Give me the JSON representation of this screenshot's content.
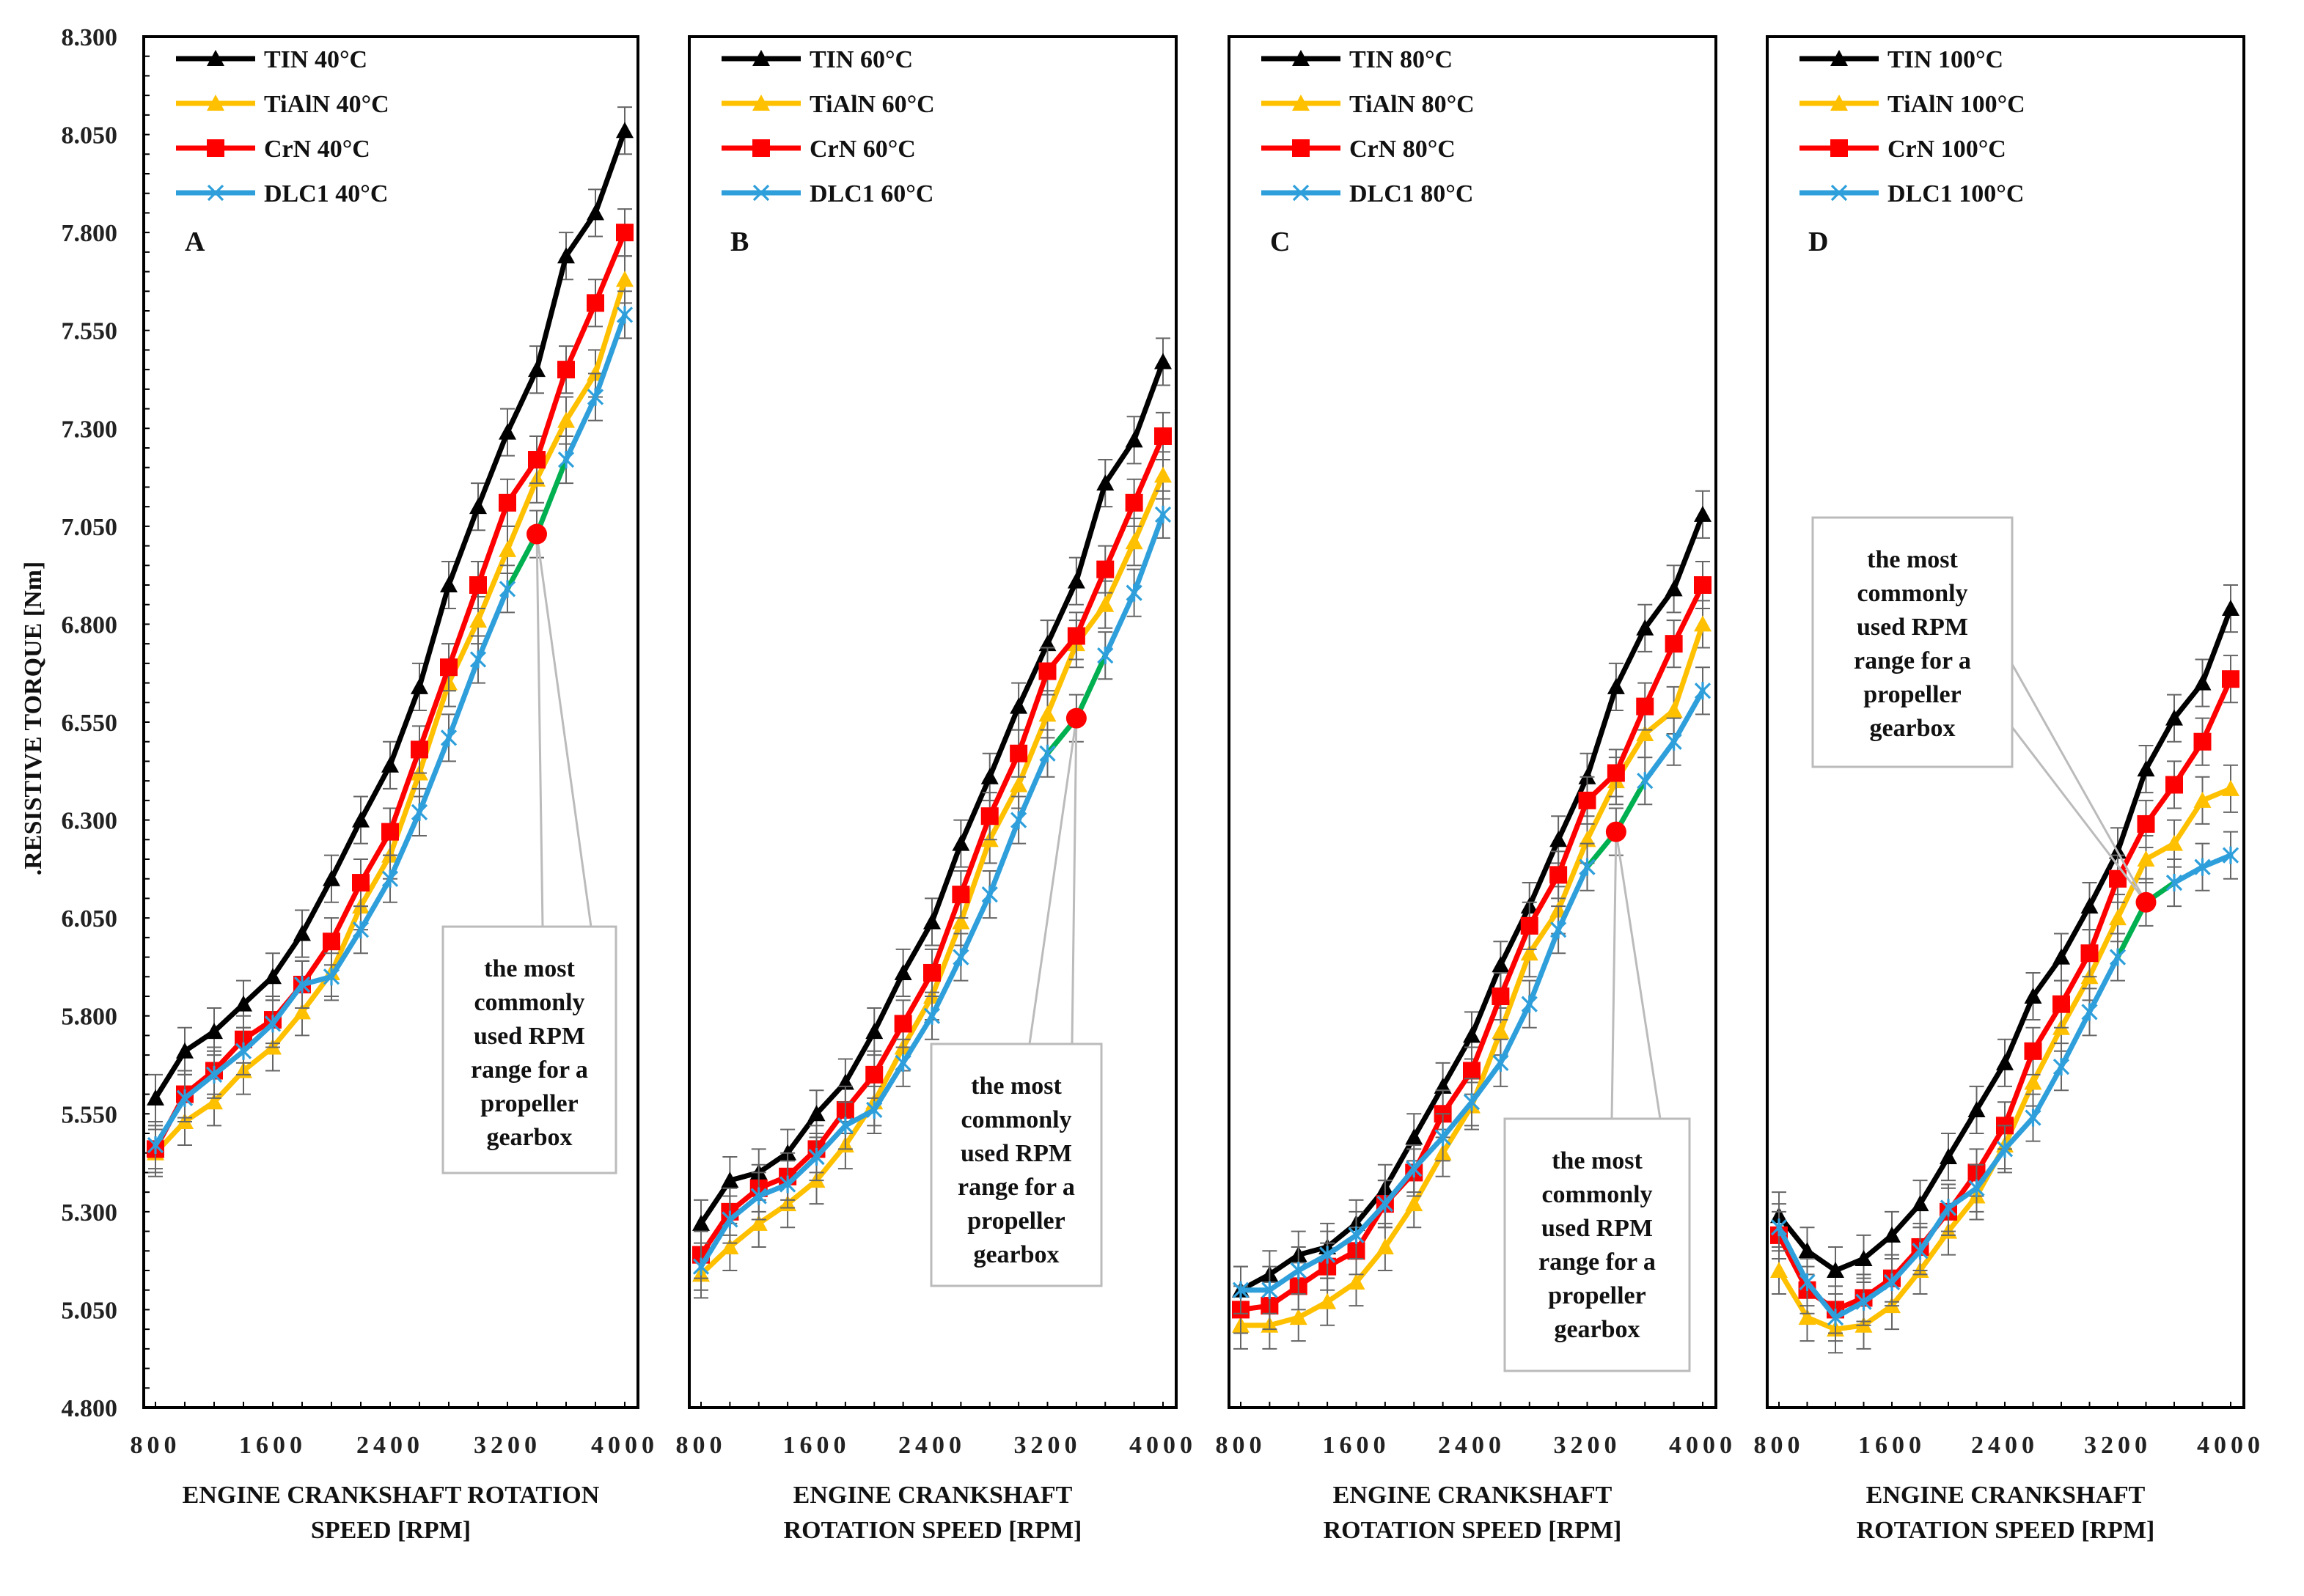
{
  "shared": {
    "ylabel": ".RESISTIVE TORQUE [Nm]",
    "ylim": [
      4.8,
      8.3
    ],
    "yticks": [
      "4.800",
      "5.050",
      "5.300",
      "5.550",
      "5.800",
      "6.050",
      "6.300",
      "6.550",
      "6.800",
      "7.050",
      "7.300",
      "7.550",
      "7.800",
      "8.050",
      "8.300"
    ],
    "xlim": [
      800,
      4000
    ],
    "xticks": [
      "800",
      "1600",
      "2400",
      "3200",
      "4000"
    ],
    "x": [
      800,
      1000,
      1200,
      1400,
      1600,
      1800,
      2000,
      2200,
      2400,
      2600,
      2800,
      3000,
      3200,
      3400,
      3600,
      3800,
      4000
    ],
    "error_bar": 0.06,
    "highlight_range": [
      3200,
      3600
    ],
    "highlight_color": "#00B050",
    "circle_x": 3400,
    "callout_text": [
      "the most",
      "commonly",
      "used RPM",
      "range for a",
      "propeller",
      "gearbox"
    ]
  },
  "chart_data": [
    {
      "type": "line",
      "panel_label": "A",
      "xlabel": [
        "ENGINE CRANKSHAFT ROTATION",
        "SPEED [RPM]"
      ],
      "series": [
        {
          "name": "TIN 40°C",
          "color": "#000000",
          "marker": "triangle",
          "values": [
            5.59,
            5.71,
            5.76,
            5.83,
            5.9,
            6.01,
            6.15,
            6.3,
            6.44,
            6.64,
            6.9,
            7.1,
            7.29,
            7.45,
            7.74,
            7.85,
            8.06
          ]
        },
        {
          "name": "TiAlN 40°C",
          "color": "#FFC000",
          "marker": "triangle",
          "values": [
            5.45,
            5.53,
            5.58,
            5.66,
            5.72,
            5.81,
            5.91,
            6.08,
            6.21,
            6.42,
            6.65,
            6.81,
            6.99,
            7.17,
            7.32,
            7.44,
            7.68
          ]
        },
        {
          "name": "CrN 40°C",
          "color": "#FF0000",
          "marker": "square",
          "values": [
            5.46,
            5.6,
            5.66,
            5.74,
            5.79,
            5.88,
            5.99,
            6.14,
            6.27,
            6.48,
            6.69,
            6.9,
            7.11,
            7.22,
            7.45,
            7.62,
            7.8
          ]
        },
        {
          "name": "DLC1 40°C",
          "color": "#2E9FDB",
          "marker": "star",
          "values": [
            5.47,
            5.59,
            5.65,
            5.71,
            5.78,
            5.88,
            5.9,
            6.02,
            6.15,
            6.32,
            6.51,
            6.71,
            6.89,
            7.03,
            7.22,
            7.38,
            7.59
          ]
        }
      ]
    },
    {
      "type": "line",
      "panel_label": "B",
      "xlabel": [
        "ENGINE CRANKSHAFT",
        "ROTATION SPEED [RPM]"
      ],
      "series": [
        {
          "name": "TIN 60°C",
          "color": "#000000",
          "marker": "triangle",
          "values": [
            5.27,
            5.38,
            5.4,
            5.45,
            5.55,
            5.63,
            5.76,
            5.91,
            6.04,
            6.24,
            6.41,
            6.59,
            6.75,
            6.91,
            7.16,
            7.27,
            7.47
          ]
        },
        {
          "name": "TiAlN 60°C",
          "color": "#FFC000",
          "marker": "triangle",
          "values": [
            5.14,
            5.21,
            5.27,
            5.32,
            5.38,
            5.47,
            5.58,
            5.72,
            5.85,
            6.04,
            6.25,
            6.39,
            6.57,
            6.75,
            6.85,
            7.01,
            7.18
          ]
        },
        {
          "name": "CrN 60°C",
          "color": "#FF0000",
          "marker": "square",
          "values": [
            5.19,
            5.3,
            5.36,
            5.39,
            5.46,
            5.56,
            5.65,
            5.78,
            5.91,
            6.11,
            6.31,
            6.47,
            6.68,
            6.77,
            6.94,
            7.11,
            7.28
          ]
        },
        {
          "name": "DLC1 60°C",
          "color": "#2E9FDB",
          "marker": "star",
          "values": [
            5.16,
            5.28,
            5.34,
            5.37,
            5.44,
            5.52,
            5.56,
            5.68,
            5.8,
            5.95,
            6.11,
            6.3,
            6.47,
            6.56,
            6.72,
            6.88,
            7.08
          ]
        }
      ]
    },
    {
      "type": "line",
      "panel_label": "C",
      "xlabel": [
        "ENGINE CRANKSHAFT",
        "ROTATION SPEED [RPM]"
      ],
      "series": [
        {
          "name": "TIN 80°C",
          "color": "#000000",
          "marker": "triangle",
          "values": [
            5.1,
            5.14,
            5.19,
            5.21,
            5.27,
            5.36,
            5.49,
            5.62,
            5.75,
            5.93,
            6.08,
            6.25,
            6.41,
            6.64,
            6.79,
            6.89,
            7.08
          ]
        },
        {
          "name": "TiAlN 80°C",
          "color": "#FFC000",
          "marker": "triangle",
          "values": [
            5.01,
            5.01,
            5.03,
            5.07,
            5.12,
            5.21,
            5.32,
            5.45,
            5.57,
            5.76,
            5.96,
            6.07,
            6.25,
            6.4,
            6.52,
            6.58,
            6.8
          ]
        },
        {
          "name": "CrN 80°C",
          "color": "#FF0000",
          "marker": "square",
          "values": [
            5.05,
            5.06,
            5.11,
            5.16,
            5.2,
            5.32,
            5.4,
            5.55,
            5.66,
            5.85,
            6.03,
            6.16,
            6.35,
            6.42,
            6.59,
            6.75,
            6.9
          ]
        },
        {
          "name": "DLC1 80°C",
          "color": "#2E9FDB",
          "marker": "star",
          "values": [
            5.1,
            5.1,
            5.15,
            5.19,
            5.24,
            5.32,
            5.41,
            5.49,
            5.58,
            5.68,
            5.83,
            6.02,
            6.18,
            6.27,
            6.4,
            6.5,
            6.63
          ]
        }
      ]
    },
    {
      "type": "line",
      "panel_label": "D",
      "xlabel": [
        "ENGINE CRANKSHAFT",
        "ROTATION SPEED [RPM]"
      ],
      "series": [
        {
          "name": "TIN 100°C",
          "color": "#000000",
          "marker": "triangle",
          "values": [
            5.29,
            5.2,
            5.15,
            5.18,
            5.24,
            5.32,
            5.44,
            5.56,
            5.68,
            5.85,
            5.95,
            6.08,
            6.22,
            6.43,
            6.56,
            6.65,
            6.84
          ]
        },
        {
          "name": "TiAlN 100°C",
          "color": "#FFC000",
          "marker": "triangle",
          "values": [
            5.15,
            5.03,
            5.0,
            5.01,
            5.06,
            5.15,
            5.25,
            5.34,
            5.47,
            5.63,
            5.77,
            5.9,
            6.05,
            6.2,
            6.24,
            6.35,
            6.38
          ]
        },
        {
          "name": "CrN 100°C",
          "color": "#FF0000",
          "marker": "square",
          "values": [
            5.24,
            5.1,
            5.05,
            5.08,
            5.13,
            5.21,
            5.3,
            5.4,
            5.52,
            5.71,
            5.83,
            5.96,
            6.15,
            6.29,
            6.39,
            6.5,
            6.66
          ]
        },
        {
          "name": "DLC1 100°C",
          "color": "#2E9FDB",
          "marker": "star",
          "values": [
            5.26,
            5.12,
            5.03,
            5.07,
            5.12,
            5.2,
            5.31,
            5.36,
            5.46,
            5.54,
            5.67,
            5.81,
            5.95,
            6.09,
            6.14,
            6.18,
            6.21
          ]
        }
      ]
    }
  ]
}
